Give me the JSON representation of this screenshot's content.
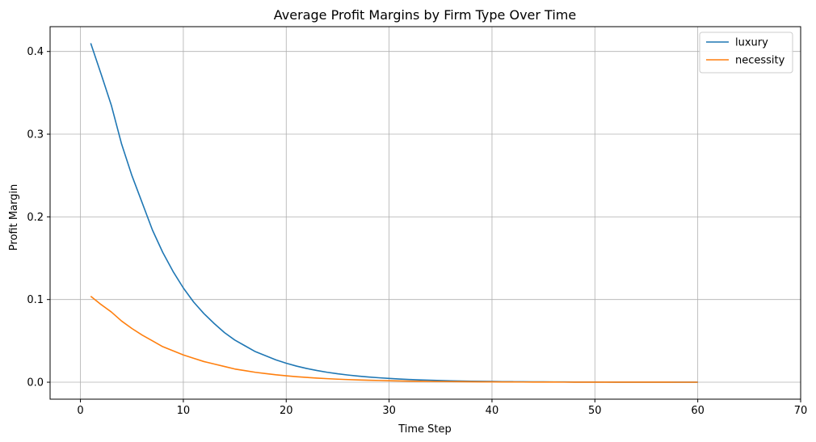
{
  "chart_data": {
    "type": "line",
    "title": "Average Profit Margins by Firm Type Over Time",
    "xlabel": "Time Step",
    "ylabel": "Profit Margin",
    "xlim": [
      -2.95,
      70
    ],
    "ylim": [
      -0.0205,
      0.43
    ],
    "xticks": [
      0,
      10,
      20,
      30,
      40,
      50,
      60,
      70
    ],
    "yticks": [
      0.0,
      0.1,
      0.2,
      0.3,
      0.4
    ],
    "xtick_labels": [
      "0",
      "10",
      "20",
      "30",
      "40",
      "50",
      "60",
      "70"
    ],
    "ytick_labels": [
      "0.0",
      "0.1",
      "0.2",
      "0.3",
      "0.4"
    ],
    "grid": true,
    "legend_position": "top-right",
    "x": [
      1,
      2,
      3,
      4,
      5,
      6,
      7,
      8,
      9,
      10,
      11,
      12,
      13,
      14,
      15,
      16,
      17,
      18,
      19,
      20,
      21,
      22,
      23,
      24,
      25,
      26,
      27,
      28,
      29,
      30,
      31,
      32,
      33,
      34,
      35,
      36,
      37,
      38,
      39,
      40,
      41,
      42,
      43,
      44,
      45,
      46,
      47,
      48,
      49,
      50,
      51,
      52,
      53,
      54,
      55,
      56,
      57,
      58,
      59,
      60
    ],
    "series": [
      {
        "name": "luxury",
        "color": "#1f77b4",
        "values": [
          0.41,
          0.373,
          0.335,
          0.288,
          0.25,
          0.217,
          0.184,
          0.157,
          0.134,
          0.114,
          0.097,
          0.083,
          0.071,
          0.06,
          0.051,
          0.044,
          0.037,
          0.032,
          0.027,
          0.023,
          0.0195,
          0.0166,
          0.0141,
          0.012,
          0.0102,
          0.0087,
          0.0074,
          0.0063,
          0.0054,
          0.0046,
          0.0039,
          0.0033,
          0.0028,
          0.0024,
          0.002,
          0.0017,
          0.00145,
          0.00123,
          0.00105,
          0.00089,
          0.00076,
          0.00065,
          0.00055,
          0.00047,
          0.0004,
          0.00034,
          0.00029,
          0.00025,
          0.00021,
          0.00018,
          0.00015,
          0.00013,
          0.00011,
          0.0001,
          8e-05,
          7e-05,
          6e-05,
          5e-05,
          4e-05,
          4e-05
        ]
      },
      {
        "name": "necessity",
        "color": "#ff7f0e",
        "values": [
          0.104,
          0.094,
          0.085,
          0.074,
          0.065,
          0.057,
          0.05,
          0.043,
          0.038,
          0.033,
          0.029,
          0.025,
          0.022,
          0.019,
          0.016,
          0.014,
          0.012,
          0.0105,
          0.009,
          0.0078,
          0.0067,
          0.0058,
          0.005,
          0.0043,
          0.0037,
          0.0032,
          0.0028,
          0.0024,
          0.0021,
          0.0018,
          0.00155,
          0.00134,
          0.00116,
          0.001,
          0.00087,
          0.00075,
          0.00065,
          0.00056,
          0.00048,
          0.00042,
          0.00036,
          0.00031,
          0.00027,
          0.00023,
          0.0002,
          0.00017,
          0.00015,
          0.00013,
          0.00011,
          0.0001,
          8e-05,
          7e-05,
          6e-05,
          5e-05,
          5e-05,
          4e-05,
          4e-05,
          3e-05,
          3e-05,
          3e-05
        ]
      }
    ]
  }
}
